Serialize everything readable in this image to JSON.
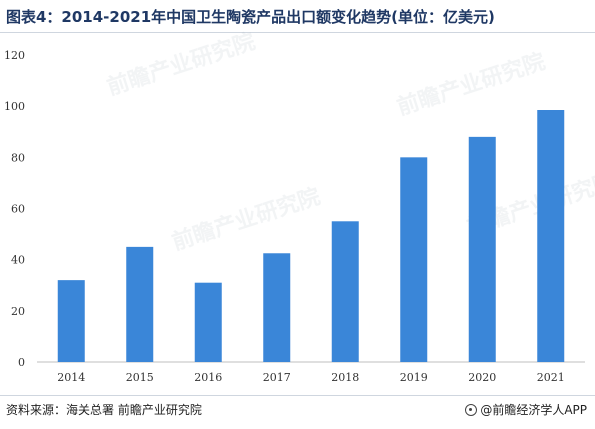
{
  "title": "图表4：2014-2021年中国卫生陶瓷产品出口额变化趋势(单位：亿美元)",
  "source": "资料来源：海关总署 前瞻产业研究院",
  "brand": "@前瞻经济学人APP",
  "watermark": "前瞻产业研究院",
  "colors": {
    "bar": "#3a86d8",
    "axis": "#bfbfbf",
    "title": "#1f3864"
  },
  "chart_data": {
    "type": "bar",
    "categories": [
      "2014",
      "2015",
      "2016",
      "2017",
      "2018",
      "2019",
      "2020",
      "2021"
    ],
    "values": [
      32,
      45,
      31,
      42.5,
      55,
      80,
      88,
      98.5
    ],
    "ylim": [
      0,
      120
    ],
    "yticks": [
      0,
      20,
      40,
      60,
      80,
      100,
      120
    ],
    "grid": false,
    "legend": "none"
  }
}
